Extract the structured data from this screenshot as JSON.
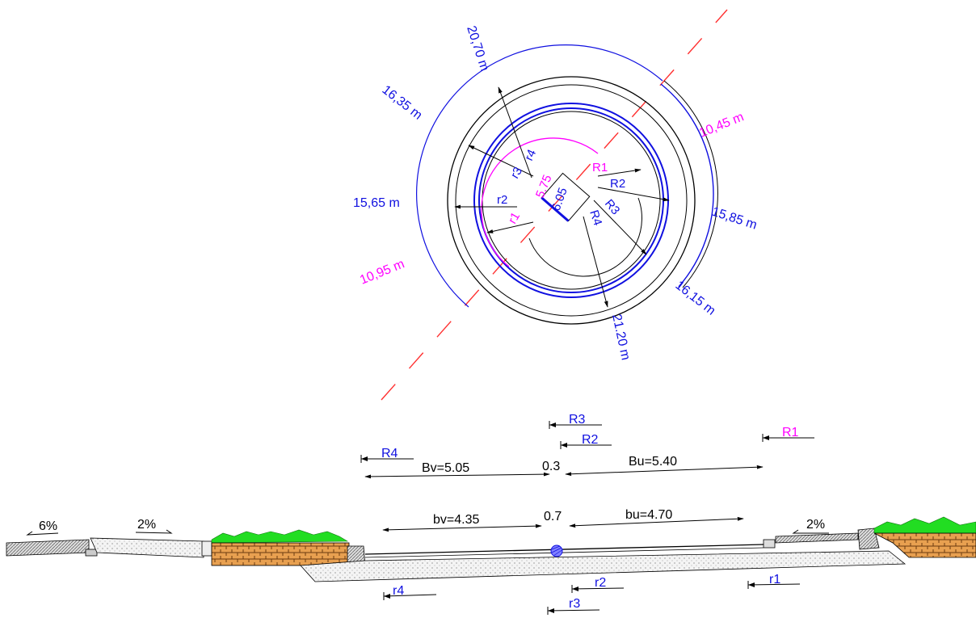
{
  "plan": {
    "dims": {
      "d2070": "20,70 m",
      "d1635": "16,35 m",
      "d1565": "15,65 m",
      "d1095": "10,95 m",
      "d1045": "10,45 m",
      "d1585": "15,85 m",
      "d1615": "16,15 m",
      "d2120": "21.20 m",
      "d575": "5.75",
      "d605": "6.05"
    },
    "radii": {
      "r1": "r1",
      "r2": "r2",
      "r3": "r3",
      "r4": "r4",
      "R1": "R1",
      "R2": "R2",
      "R3": "R3",
      "R4": "R4"
    }
  },
  "section": {
    "top": {
      "R3": "R3",
      "R2": "R2",
      "R1": "R1",
      "R4": "R4",
      "Bv": "Bv=5.05",
      "mid": "0.3",
      "Bu": "Bu=5.40"
    },
    "inner": {
      "bv": "bv=4.35",
      "mid": "0.7",
      "bu": "bu=4.70"
    },
    "slopes": {
      "left_outer": "6%",
      "left_inner": "2%",
      "right": "2%"
    },
    "bottom": {
      "r4": "r4",
      "r2": "r2",
      "r1": "r1",
      "r3": "r3"
    }
  },
  "colors": {
    "blue": "#1010e0",
    "magenta": "#ff00ff",
    "red": "#ff3030",
    "green": "#22dd22",
    "brick": "#e8a050"
  }
}
